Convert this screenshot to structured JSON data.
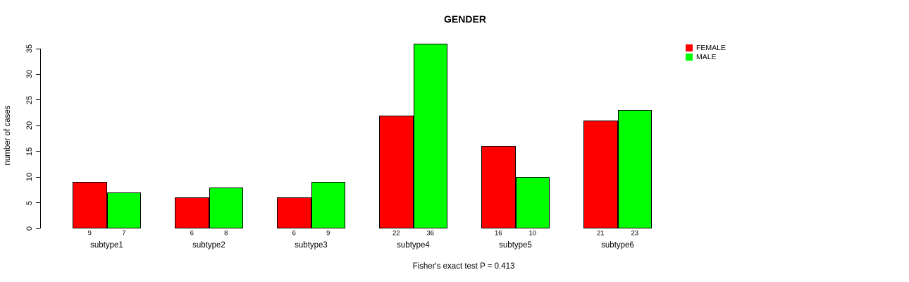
{
  "chart_data": {
    "type": "bar",
    "title": "GENDER",
    "ylabel": "number of cases",
    "xlabel": "",
    "footer": "Fisher's exact test P = 0.413",
    "categories": [
      "subtype1",
      "subtype2",
      "subtype3",
      "subtype4",
      "subtype5",
      "subtype6"
    ],
    "series": [
      {
        "name": "FEMALE",
        "color": "#FF0000",
        "values": [
          9,
          6,
          6,
          22,
          16,
          21
        ]
      },
      {
        "name": "MALE",
        "color": "#00FF00",
        "values": [
          7,
          8,
          9,
          36,
          10,
          23
        ]
      }
    ],
    "ylim": [
      0,
      35
    ],
    "yticks": [
      0,
      5,
      10,
      15,
      20,
      25,
      30,
      35
    ],
    "grid": false,
    "legend_position": "top-right",
    "bar_value_labels_shown": true,
    "bar_border_color": "#000000",
    "background_color": "#FFFFFF",
    "text_color": "#000000"
  }
}
